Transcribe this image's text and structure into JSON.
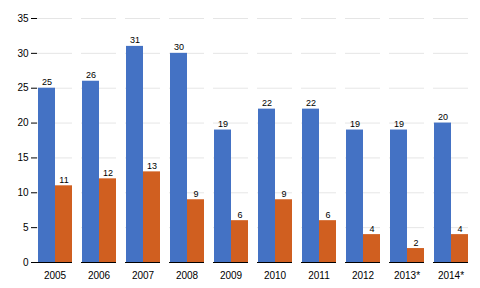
{
  "chart_data": {
    "type": "bar",
    "categories": [
      "2005",
      "2006",
      "2007",
      "2008",
      "2009",
      "2010",
      "2011",
      "2012",
      "2013*",
      "2014*"
    ],
    "series": [
      {
        "color": "#4472C4",
        "values": [
          25,
          26,
          31,
          30,
          19,
          22,
          22,
          19,
          19,
          20
        ]
      },
      {
        "color": "#D05F20",
        "values": [
          11,
          12,
          13,
          9,
          6,
          9,
          6,
          4,
          2,
          4
        ]
      }
    ],
    "ylim": [
      0,
      35
    ],
    "yticks": [
      0,
      5,
      10,
      15,
      20,
      25,
      30,
      35
    ],
    "grid": true,
    "data_labels": true
  }
}
